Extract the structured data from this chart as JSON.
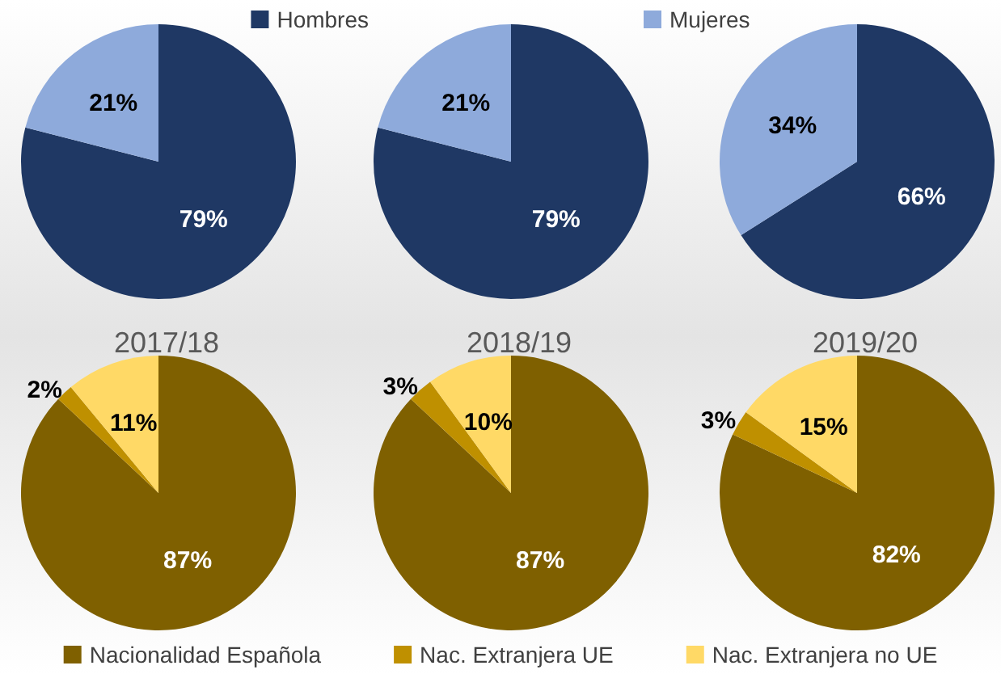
{
  "chart_data": [
    {
      "type": "pie",
      "categories": [
        "Hombres",
        "Mujeres"
      ],
      "values": [
        79,
        21
      ],
      "value_labels": [
        "79%",
        "21%"
      ],
      "colors": [
        "#1f3864",
        "#8eaadb"
      ],
      "legend": "top"
    },
    {
      "type": "pie",
      "categories": [
        null,
        null
      ],
      "values": [
        79,
        21
      ],
      "value_labels": [
        "79%",
        "21%"
      ],
      "colors": [
        "#1f3864",
        "#8eaadb"
      ]
    },
    {
      "type": "pie",
      "categories": [
        null,
        null
      ],
      "values": [
        66,
        34
      ],
      "value_labels": [
        "66%",
        "34%"
      ],
      "colors": [
        "#1f3864",
        "#8eaadb"
      ]
    },
    {
      "type": "pie",
      "title": "2017/18",
      "categories": [
        "Nacionalidad Española",
        "Nac. Extranjera UE",
        "Nac. Extranjera no UE"
      ],
      "values": [
        87,
        2,
        11
      ],
      "value_labels": [
        "87%",
        "2%",
        "11%"
      ],
      "colors": [
        "#7f6000",
        "#bf9000",
        "#ffd966"
      ],
      "legend": "bottom"
    },
    {
      "type": "pie",
      "title": "2018/19",
      "categories": [
        null,
        null,
        null
      ],
      "values": [
        87,
        3,
        10
      ],
      "value_labels": [
        "87%",
        "3%",
        "10%"
      ],
      "colors": [
        "#7f6000",
        "#bf9000",
        "#ffd966"
      ]
    },
    {
      "type": "pie",
      "title": "2019/20",
      "categories": [
        null,
        null,
        null
      ],
      "values": [
        82,
        3,
        15
      ],
      "value_labels": [
        "82%",
        "3%",
        "15%"
      ],
      "colors": [
        "#7f6000",
        "#bf9000",
        "#ffd966"
      ]
    }
  ]
}
